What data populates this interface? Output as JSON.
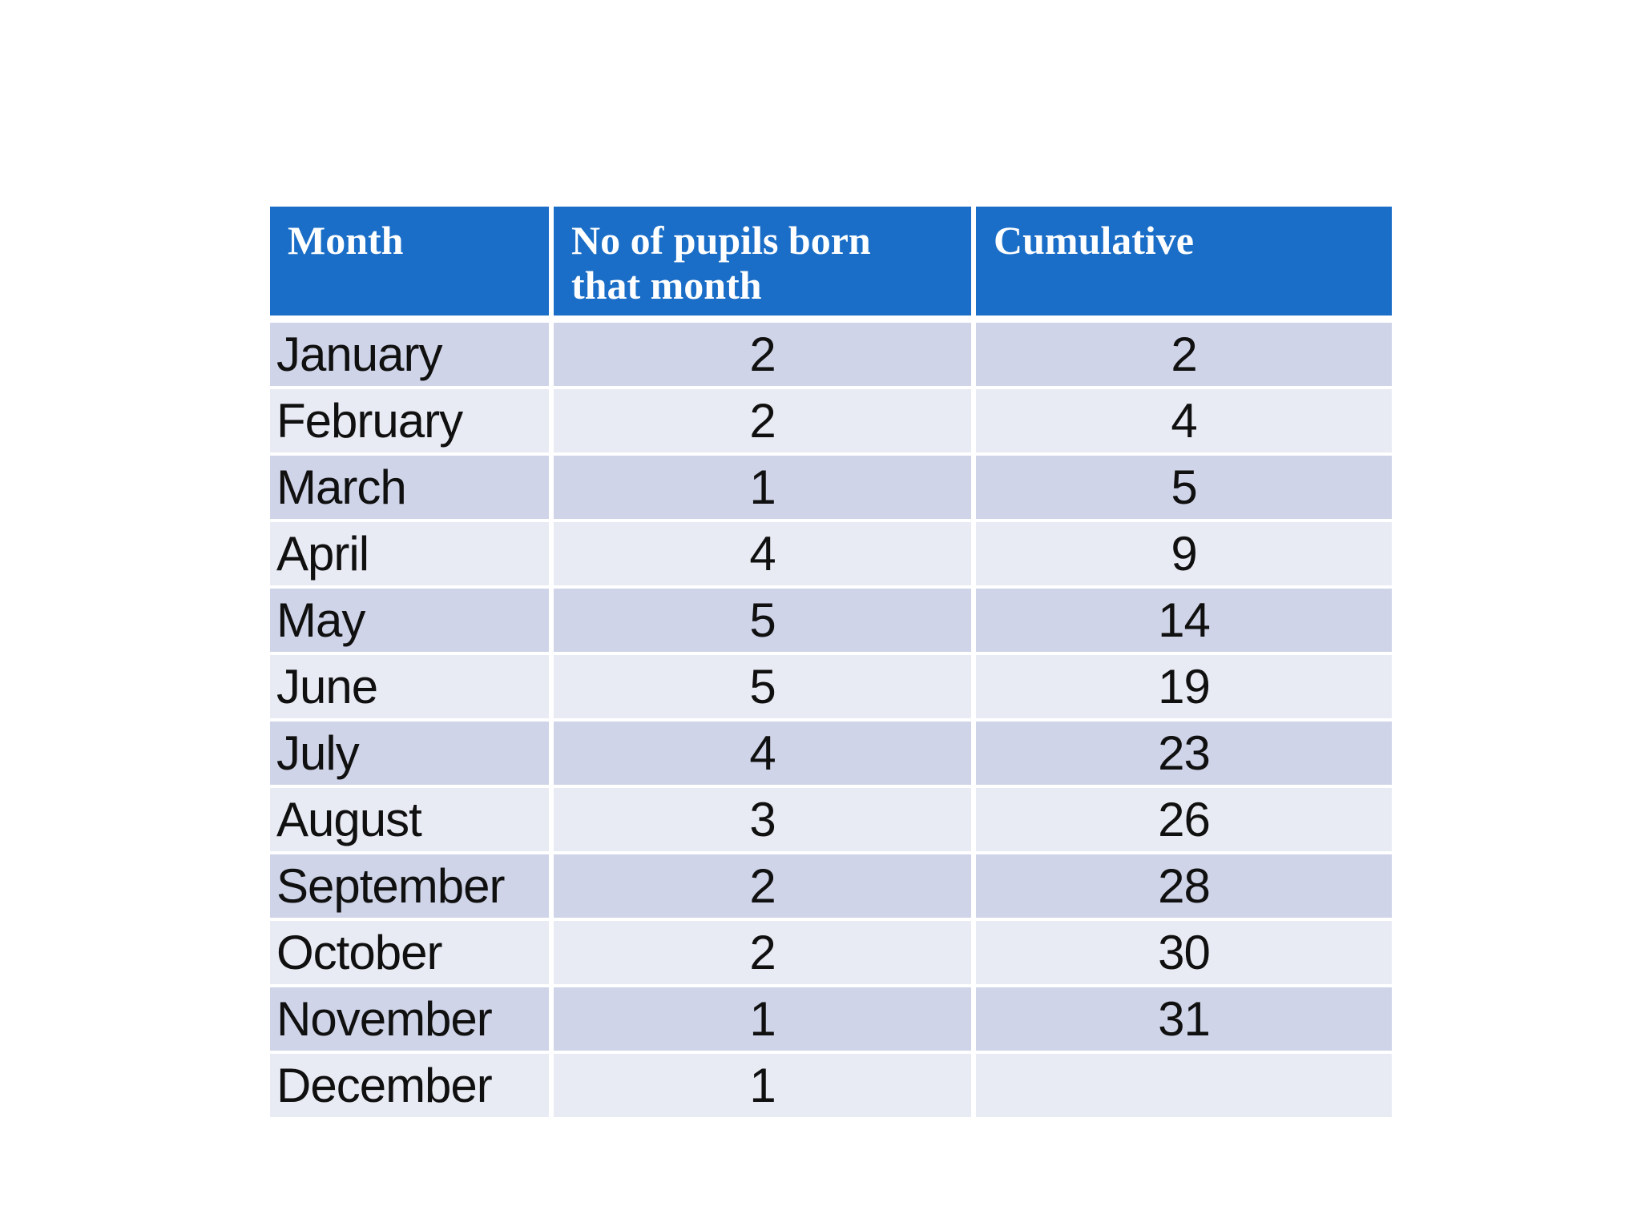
{
  "colors": {
    "header_bg": "#1B6EC7",
    "header_text": "#FFFFFF",
    "row_odd": "#CFD4E8",
    "row_even": "#E9EBF4",
    "body_text": "#101010",
    "grid_gap": "#FFFFFF"
  },
  "table": {
    "columns": [
      {
        "label": "Month"
      },
      {
        "label": "No of pupils born\nthat month"
      },
      {
        "label": "Cumulative"
      }
    ],
    "rows": [
      {
        "month": "January",
        "count": "2",
        "cumulative": "2"
      },
      {
        "month": "February",
        "count": "2",
        "cumulative": "4"
      },
      {
        "month": "March",
        "count": "1",
        "cumulative": "5"
      },
      {
        "month": "April",
        "count": "4",
        "cumulative": "9"
      },
      {
        "month": "May",
        "count": "5",
        "cumulative": "14"
      },
      {
        "month": "June",
        "count": "5",
        "cumulative": "19"
      },
      {
        "month": "July",
        "count": "4",
        "cumulative": "23"
      },
      {
        "month": "August",
        "count": "3",
        "cumulative": "26"
      },
      {
        "month": "September",
        "count": "2",
        "cumulative": "28"
      },
      {
        "month": "October",
        "count": "2",
        "cumulative": "30"
      },
      {
        "month": "November",
        "count": "1",
        "cumulative": "31"
      },
      {
        "month": "December",
        "count": "1",
        "cumulative": ""
      }
    ]
  },
  "chart_data": {
    "type": "table",
    "title": "",
    "columns": [
      "Month",
      "No of pupils born that month",
      "Cumulative"
    ],
    "categories": [
      "January",
      "February",
      "March",
      "April",
      "May",
      "June",
      "July",
      "August",
      "September",
      "October",
      "November",
      "December"
    ],
    "series": [
      {
        "name": "No of pupils born that month",
        "values": [
          2,
          2,
          1,
          4,
          5,
          5,
          4,
          3,
          2,
          2,
          1,
          1
        ]
      },
      {
        "name": "Cumulative",
        "values": [
          2,
          4,
          5,
          9,
          14,
          19,
          23,
          26,
          28,
          30,
          31,
          null
        ]
      }
    ]
  }
}
